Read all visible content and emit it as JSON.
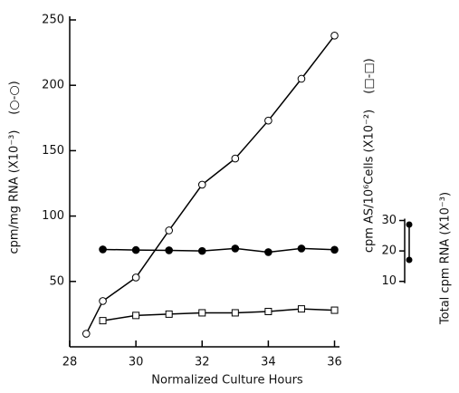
{
  "chart_data": {
    "type": "line",
    "xlabel": "Normalized Culture Hours",
    "ylabel": "cpm/mg RNA (X10⁻³)",
    "y3label": "cpm AS/10⁶Cells (X10⁻²)",
    "y2label": "Total cpm RNA (X10⁻³)",
    "xlim": [
      28,
      36.15
    ],
    "xticks": [
      28,
      30,
      32,
      34,
      36
    ],
    "ylim": [
      0,
      250
    ],
    "yticks": [
      50,
      100,
      150,
      200,
      250
    ],
    "y2lim": [
      -11.5,
      95.9
    ],
    "y2ticks": [
      10,
      20,
      30
    ],
    "series": [
      {
        "name": "cpm/mg RNA",
        "marker": "open-circle",
        "color": "#000000",
        "x": [
          28.5,
          29,
          30,
          31,
          32,
          33,
          34,
          35,
          36
        ],
        "values": [
          10,
          35,
          53,
          89,
          124,
          144,
          173,
          205,
          238
        ]
      },
      {
        "name": "Total cpm RNA",
        "marker": "filled-circle",
        "color": "#000000",
        "axis": "y2",
        "x": [
          29,
          30,
          31,
          32,
          33,
          34,
          35,
          36
        ],
        "values": [
          20.5,
          20.3,
          20.2,
          20,
          20.8,
          19.6,
          20.8,
          20.4
        ]
      },
      {
        "name": "cpm AS/10⁶ Cells",
        "marker": "open-square",
        "color": "#000000",
        "x": [
          29,
          30,
          31,
          32,
          33,
          34,
          35,
          36
        ],
        "values": [
          20,
          24,
          25,
          26,
          26,
          27,
          29,
          28
        ]
      }
    ]
  }
}
